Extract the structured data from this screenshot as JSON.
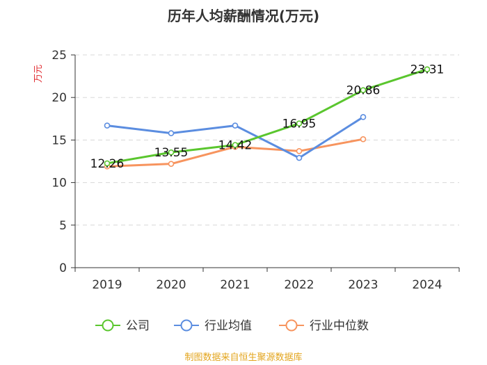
{
  "chart_data": {
    "type": "line",
    "title": "历年人均薪酬情况(万元)",
    "ylabel": "万元",
    "xlabel": "",
    "ylim": [
      0,
      25
    ],
    "yticks": [
      0,
      5,
      10,
      15,
      20,
      25
    ],
    "categories": [
      "2019",
      "2020",
      "2021",
      "2022",
      "2023",
      "2024"
    ],
    "grid": true,
    "legend_position": "bottom",
    "series": [
      {
        "name": "公司",
        "color": "#5ac62e",
        "values": [
          12.26,
          13.55,
          14.42,
          16.95,
          20.86,
          23.31
        ],
        "labels": [
          "12.26",
          "13.55",
          "14.42",
          "16.95",
          "20.86",
          "23.31"
        ]
      },
      {
        "name": "行业均值",
        "color": "#5b8de0",
        "values": [
          16.7,
          15.8,
          16.7,
          12.9,
          17.7,
          null
        ]
      },
      {
        "name": "行业中位数",
        "color": "#f7945e",
        "values": [
          11.9,
          12.2,
          14.2,
          13.7,
          15.1,
          null
        ]
      }
    ],
    "source": "制图数据来自恒生聚源数据库"
  }
}
